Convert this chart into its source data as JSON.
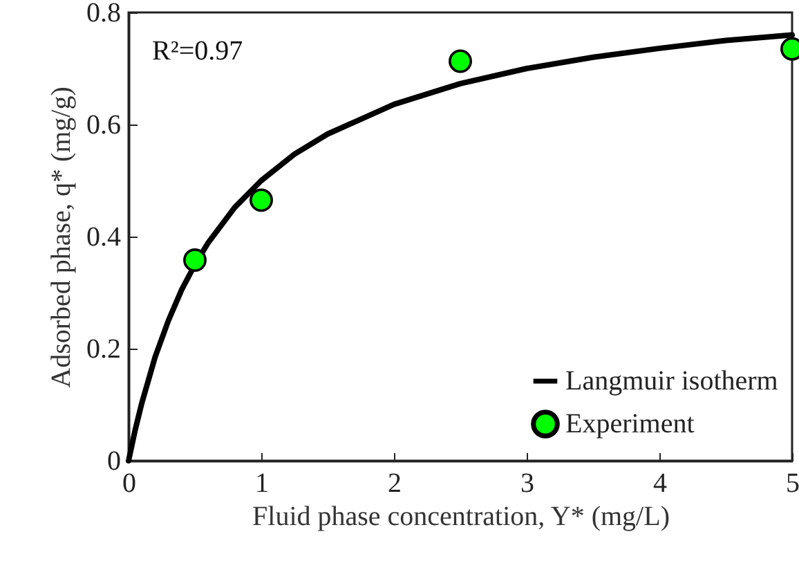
{
  "chart_data": {
    "type": "line",
    "xlabel": "Fluid phase concentration, Y* (mg/L)",
    "ylabel": "Adsorbed phase, q* (mg/g)",
    "xlim": [
      0,
      5
    ],
    "xticks": [
      0,
      1,
      2,
      3,
      4,
      5
    ],
    "ylim": [
      0,
      0.8
    ],
    "yticks": [
      0,
      0.2,
      0.4,
      0.6,
      0.8
    ],
    "grid": false,
    "legend": "bottom right",
    "annotations": [
      "R²=0.97"
    ],
    "series": [
      {
        "name": "Langmuir isotherm",
        "color": "#000000",
        "line_style": "solid",
        "x": [
          0,
          0.05,
          0.1,
          0.2,
          0.3,
          0.4,
          0.5,
          0.6,
          0.8,
          1,
          1.25,
          1.5,
          2,
          2.5,
          3,
          3.5,
          4,
          4.5,
          5
        ],
        "values": [
          0,
          0.055,
          0.103,
          0.185,
          0.25,
          0.305,
          0.35,
          0.389,
          0.452,
          0.5,
          0.547,
          0.583,
          0.636,
          0.673,
          0.7,
          0.72,
          0.736,
          0.75,
          0.76
        ]
      },
      {
        "name": "Experiment",
        "type": "scatter",
        "color": "#00ff00",
        "marker": "circle",
        "x": [
          0.5,
          1,
          2.5,
          5
        ],
        "values": [
          0.358,
          0.465,
          0.713,
          0.735
        ]
      }
    ]
  }
}
